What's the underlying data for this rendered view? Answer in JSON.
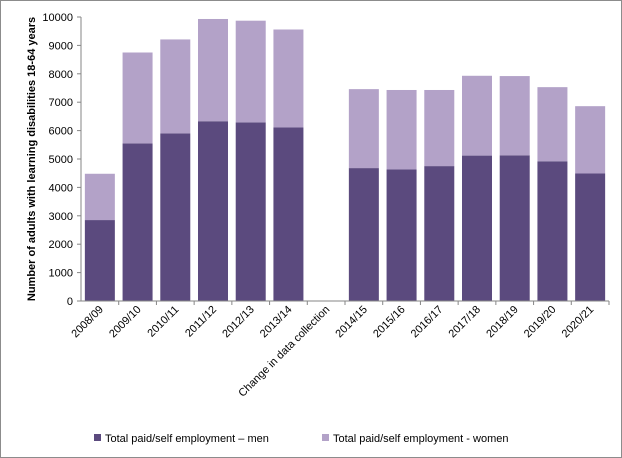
{
  "chart_data": {
    "type": "bar",
    "stacked": true,
    "title": "",
    "xlabel": "",
    "ylabel": "Number of adults with learning disabilities 18-64 years",
    "ylim": [
      0,
      10000
    ],
    "yticks": [
      0,
      1000,
      2000,
      3000,
      4000,
      5000,
      6000,
      7000,
      8000,
      9000,
      10000
    ],
    "grid": false,
    "legend_position": "bottom",
    "categories": [
      "2008/09",
      "2009/10",
      "2010/11",
      "2011/12",
      "2012/13",
      "2013/14",
      "Change in data collection",
      "2014/15",
      "2015/16",
      "2016/17",
      "2017/18",
      "2018/19",
      "2019/20",
      "2020/21"
    ],
    "series": [
      {
        "name": "Total paid/self employment – men",
        "color": "#5b4a7e",
        "values": [
          2850,
          5550,
          5900,
          6330,
          6290,
          6110,
          null,
          4680,
          4630,
          4750,
          5120,
          5130,
          4920,
          4490
        ]
      },
      {
        "name": "Total paid/self employment - women",
        "color": "#b3a2c8",
        "values": [
          1630,
          3200,
          3310,
          3600,
          3580,
          3450,
          null,
          2780,
          2800,
          2680,
          2810,
          2790,
          2610,
          2370
        ]
      }
    ]
  }
}
